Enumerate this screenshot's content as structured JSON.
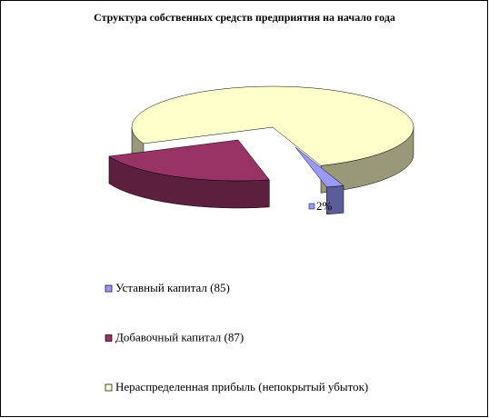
{
  "chart_data": {
    "type": "pie",
    "title": "Структура  собственных средств предприятия  на начало года",
    "categories": [
      "Уставный капитал (85)",
      "Добавочный капитал (87)",
      "Нераспределенная прибыль (непокрытый убыток)"
    ],
    "values": [
      2,
      22,
      76
    ],
    "value_labels": [
      "2%",
      null,
      null
    ],
    "colors": [
      "#9999FF",
      "#993366",
      "#FFFFCC"
    ]
  }
}
